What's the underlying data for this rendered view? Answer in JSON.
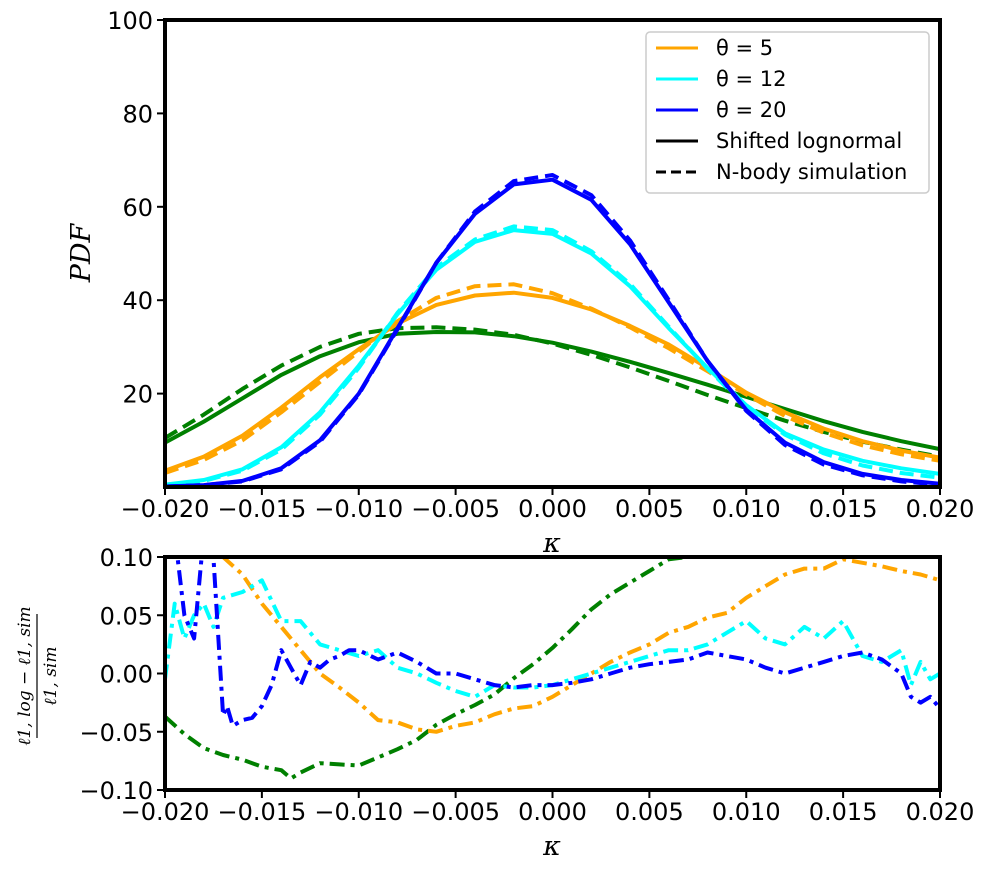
{
  "chart_data": [
    {
      "type": "line",
      "xlabel": "κ",
      "ylabel": "PDF",
      "xlim": [
        -0.02,
        0.02
      ],
      "ylim": [
        0,
        100
      ],
      "xticks": [
        -0.02,
        -0.015,
        -0.01,
        -0.005,
        0.0,
        0.005,
        0.01,
        0.015,
        0.02
      ],
      "xtick_labels": [
        "−0.020",
        "−0.015",
        "−0.010",
        "−0.005",
        "0.000",
        "0.005",
        "0.010",
        "0.015",
        "0.020"
      ],
      "yticks": [
        20,
        40,
        60,
        80,
        100
      ],
      "ytick_labels": [
        "20",
        "40",
        "60",
        "80",
        "100"
      ],
      "grid": false,
      "legend_position": "top-right",
      "legend": [
        {
          "label": "θ = 5",
          "color": "#FFA500",
          "style": "solid"
        },
        {
          "label": "θ = 12",
          "color": "#00FFFF",
          "style": "solid"
        },
        {
          "label": "θ = 20",
          "color": "#0000FF",
          "style": "solid"
        },
        {
          "label": "Shifted lognormal",
          "color": "#000000",
          "style": "solid"
        },
        {
          "label": "N-body simulation",
          "color": "#000000",
          "style": "dashed"
        }
      ],
      "series": [
        {
          "color": "#008000",
          "style": "solid",
          "x": [
            -0.02,
            -0.018,
            -0.016,
            -0.014,
            -0.012,
            -0.01,
            -0.008,
            -0.006,
            -0.004,
            -0.002,
            0.0,
            0.002,
            0.004,
            0.006,
            0.008,
            0.01,
            0.012,
            0.014,
            0.016,
            0.018,
            0.02
          ],
          "y": [
            9.5,
            14,
            19,
            24,
            28,
            31,
            32.8,
            33.2,
            33.1,
            32.3,
            30.9,
            29,
            26.8,
            24.4,
            21.9,
            19.3,
            16.7,
            14.1,
            11.8,
            9.8,
            8.1
          ]
        },
        {
          "color": "#008000",
          "style": "dashed",
          "x": [
            -0.02,
            -0.018,
            -0.016,
            -0.014,
            -0.012,
            -0.01,
            -0.008,
            -0.006,
            -0.004,
            -0.002,
            0.0,
            0.002,
            0.004,
            0.006,
            0.008,
            0.01,
            0.012,
            0.014,
            0.016,
            0.018,
            0.02
          ],
          "y": [
            10.5,
            15.5,
            21,
            26,
            30,
            32.8,
            34,
            34.2,
            33.7,
            32.6,
            30.7,
            28.3,
            25.6,
            22.7,
            19.7,
            16.9,
            14.2,
            11.8,
            9.7,
            8,
            6.5
          ]
        },
        {
          "color": "#FFA500",
          "style": "solid",
          "x": [
            -0.02,
            -0.018,
            -0.016,
            -0.014,
            -0.012,
            -0.01,
            -0.008,
            -0.006,
            -0.004,
            -0.002,
            0.0,
            0.002,
            0.004,
            0.006,
            0.008,
            0.01,
            0.012,
            0.014,
            0.016,
            0.018,
            0.02
          ],
          "y": [
            3.5,
            6.5,
            11,
            17,
            23.5,
            29.5,
            35,
            39,
            41,
            41.6,
            40.5,
            38,
            34.5,
            30.5,
            25.5,
            20.2,
            16,
            12.5,
            9.8,
            7.8,
            6.3
          ]
        },
        {
          "color": "#FFA500",
          "style": "dashed",
          "x": [
            -0.02,
            -0.018,
            -0.016,
            -0.014,
            -0.012,
            -0.01,
            -0.008,
            -0.006,
            -0.004,
            -0.002,
            0.0,
            0.002,
            0.004,
            0.006,
            0.008,
            0.01,
            0.012,
            0.014,
            0.016,
            0.018,
            0.02
          ],
          "y": [
            3,
            5.8,
            10,
            16,
            22.5,
            29,
            35.5,
            40.5,
            43,
            43.4,
            41.5,
            38.2,
            34.2,
            29.7,
            24.8,
            19.8,
            15.2,
            11.6,
            8.9,
            7,
            5.6
          ]
        },
        {
          "color": "#00FFFF",
          "style": "solid",
          "x": [
            -0.02,
            -0.018,
            -0.016,
            -0.014,
            -0.012,
            -0.01,
            -0.008,
            -0.006,
            -0.004,
            -0.002,
            0.0,
            0.002,
            0.004,
            0.006,
            0.008,
            0.01,
            0.012,
            0.014,
            0.016,
            0.018,
            0.02
          ],
          "y": [
            0.5,
            1.5,
            3.8,
            8.5,
            16,
            26,
            37,
            46.5,
            52.5,
            55,
            54.2,
            50,
            43,
            34,
            25.5,
            17.5,
            11.5,
            8,
            5.6,
            4,
            2.8
          ]
        },
        {
          "color": "#00FFFF",
          "style": "dashed",
          "x": [
            -0.02,
            -0.018,
            -0.016,
            -0.014,
            -0.012,
            -0.01,
            -0.008,
            -0.006,
            -0.004,
            -0.002,
            0.0,
            0.002,
            0.004,
            0.006,
            0.008,
            0.01,
            0.012,
            0.014,
            0.016,
            0.018,
            0.02
          ],
          "y": [
            0.4,
            1.3,
            3.5,
            8,
            15.5,
            25.5,
            37.3,
            47,
            53,
            55.8,
            55,
            50.5,
            43.5,
            34.3,
            25.3,
            17.2,
            11.2,
            7.2,
            4.6,
            3,
            2
          ]
        },
        {
          "color": "#0000FF",
          "style": "solid",
          "x": [
            -0.02,
            -0.018,
            -0.016,
            -0.014,
            -0.012,
            -0.01,
            -0.008,
            -0.006,
            -0.004,
            -0.002,
            0.0,
            0.002,
            0.004,
            0.006,
            0.008,
            0.01,
            0.012,
            0.014,
            0.016,
            0.018,
            0.02
          ],
          "y": [
            0.1,
            0.4,
            1.3,
            4,
            10,
            20,
            34,
            48,
            58.5,
            64.8,
            65.8,
            61.5,
            52,
            39.5,
            27,
            16.5,
            9.5,
            5.3,
            2.8,
            1.5,
            0.7
          ]
        },
        {
          "color": "#0000FF",
          "style": "dashed",
          "x": [
            -0.02,
            -0.018,
            -0.016,
            -0.014,
            -0.012,
            -0.01,
            -0.008,
            -0.006,
            -0.004,
            -0.002,
            0.0,
            0.002,
            0.004,
            0.006,
            0.008,
            0.01,
            0.012,
            0.014,
            0.016,
            0.018,
            0.02
          ],
          "y": [
            0.1,
            0.4,
            1.2,
            3.8,
            9.7,
            19.8,
            33.8,
            48,
            59,
            65.5,
            66.8,
            62.5,
            52.8,
            40,
            27,
            16.3,
            9,
            4.8,
            2.5,
            1.2,
            0.5
          ]
        }
      ]
    },
    {
      "type": "line",
      "xlabel": "κ",
      "ylabel": "ℓ1,log − ℓ1,sim / ℓ1,sim",
      "ylabel_numerator": "ℓ1, log − ℓ1, sim",
      "ylabel_denominator": "ℓ1, sim",
      "xlim": [
        -0.02,
        0.02
      ],
      "ylim": [
        -0.1,
        0.1
      ],
      "xticks": [
        -0.02,
        -0.015,
        -0.01,
        -0.005,
        0.0,
        0.005,
        0.01,
        0.015,
        0.02
      ],
      "xtick_labels": [
        "−0.020",
        "−0.015",
        "−0.010",
        "−0.005",
        "0.000",
        "0.005",
        "0.010",
        "0.015",
        "0.020"
      ],
      "yticks": [
        -0.1,
        -0.05,
        0.0,
        0.05,
        0.1
      ],
      "ytick_labels": [
        "−0.10",
        "−0.05",
        "0.00",
        "0.05",
        "0.10"
      ],
      "grid": false,
      "series": [
        {
          "color": "#008000",
          "style": "dashdot",
          "x": [
            -0.02,
            -0.019,
            -0.018,
            -0.017,
            -0.016,
            -0.015,
            -0.014,
            -0.0135,
            -0.013,
            -0.012,
            -0.011,
            -0.01,
            -0.009,
            -0.008,
            -0.007,
            -0.006,
            -0.005,
            -0.004,
            -0.003,
            -0.002,
            -0.001,
            0.0,
            0.001,
            0.002,
            0.003,
            0.004,
            0.005,
            0.006,
            0.007
          ],
          "y": [
            -0.037,
            -0.052,
            -0.064,
            -0.07,
            -0.074,
            -0.08,
            -0.083,
            -0.09,
            -0.085,
            -0.077,
            -0.078,
            -0.079,
            -0.072,
            -0.065,
            -0.057,
            -0.044,
            -0.035,
            -0.027,
            -0.018,
            -0.004,
            0.008,
            0.022,
            0.038,
            0.055,
            0.068,
            0.078,
            0.088,
            0.098,
            0.1
          ]
        },
        {
          "color": "#FFA500",
          "style": "dashdot",
          "x": [
            -0.02,
            -0.019,
            -0.018,
            -0.017,
            -0.016,
            -0.015,
            -0.014,
            -0.013,
            -0.012,
            -0.011,
            -0.01,
            -0.009,
            -0.008,
            -0.007,
            -0.006,
            -0.005,
            -0.004,
            -0.003,
            -0.002,
            -0.001,
            0.0,
            0.001,
            0.002,
            0.003,
            0.004,
            0.005,
            0.006,
            0.007,
            0.008,
            0.009,
            0.01,
            0.011,
            0.012,
            0.013,
            0.014,
            0.015,
            0.016,
            0.017,
            0.018,
            0.019,
            0.02
          ],
          "y": [
            0.12,
            0.11,
            0.105,
            0.1,
            0.085,
            0.06,
            0.04,
            0.02,
            0.0,
            -0.012,
            -0.025,
            -0.04,
            -0.042,
            -0.048,
            -0.05,
            -0.045,
            -0.042,
            -0.035,
            -0.03,
            -0.028,
            -0.02,
            -0.01,
            0.0,
            0.01,
            0.018,
            0.025,
            0.035,
            0.04,
            0.048,
            0.052,
            0.065,
            0.075,
            0.085,
            0.09,
            0.09,
            0.098,
            0.095,
            0.092,
            0.088,
            0.085,
            0.08
          ]
        },
        {
          "color": "#00FFFF",
          "style": "dashdot",
          "x": [
            -0.02,
            -0.0195,
            -0.019,
            -0.0185,
            -0.018,
            -0.0175,
            -0.017,
            -0.016,
            -0.015,
            -0.014,
            -0.013,
            -0.012,
            -0.011,
            -0.01,
            -0.009,
            -0.008,
            -0.007,
            -0.006,
            -0.005,
            -0.004,
            -0.003,
            -0.002,
            -0.001,
            0.0,
            0.001,
            0.002,
            0.003,
            0.004,
            0.005,
            0.006,
            0.007,
            0.008,
            0.009,
            0.01,
            0.011,
            0.012,
            0.013,
            0.014,
            0.015,
            0.016,
            0.017,
            0.018,
            0.0185,
            0.019,
            0.0195,
            0.02
          ],
          "y": [
            -0.005,
            0.06,
            0.03,
            0.05,
            0.06,
            0.04,
            0.065,
            0.07,
            0.08,
            0.045,
            0.045,
            0.025,
            0.02,
            0.015,
            0.02,
            0.005,
            0.0,
            -0.008,
            -0.015,
            -0.02,
            -0.01,
            -0.012,
            -0.012,
            -0.01,
            -0.005,
            0.0,
            0.005,
            0.01,
            0.015,
            0.02,
            0.02,
            0.025,
            0.035,
            0.045,
            0.03,
            0.025,
            0.04,
            0.03,
            0.045,
            0.015,
            0.01,
            0.02,
            -0.01,
            0.01,
            -0.005,
            0.0
          ]
        },
        {
          "color": "#0000FF",
          "style": "dashdot",
          "x": [
            -0.02,
            -0.0195,
            -0.019,
            -0.0185,
            -0.018,
            -0.0175,
            -0.017,
            -0.0168,
            -0.0165,
            -0.016,
            -0.0155,
            -0.015,
            -0.0145,
            -0.014,
            -0.0135,
            -0.013,
            -0.0125,
            -0.012,
            -0.0115,
            -0.011,
            -0.0105,
            -0.01,
            -0.009,
            -0.008,
            -0.007,
            -0.006,
            -0.005,
            -0.004,
            -0.003,
            -0.002,
            -0.001,
            0.0,
            0.001,
            0.002,
            0.003,
            0.004,
            0.005,
            0.006,
            0.007,
            0.008,
            0.009,
            0.01,
            0.011,
            0.012,
            0.013,
            0.014,
            0.015,
            0.016,
            0.017,
            0.018,
            0.0185,
            0.019,
            0.0195,
            0.02
          ],
          "y": [
            0.1,
            0.12,
            0.05,
            0.03,
            0.12,
            0.1,
            -0.036,
            -0.028,
            -0.045,
            -0.04,
            -0.038,
            -0.028,
            -0.01,
            0.02,
            0.005,
            -0.01,
            0.01,
            0.005,
            0.012,
            0.015,
            0.02,
            0.02,
            0.012,
            0.018,
            0.01,
            0.0,
            0.0,
            -0.005,
            -0.01,
            -0.012,
            -0.01,
            -0.01,
            -0.008,
            -0.005,
            0.0,
            0.005,
            0.008,
            0.01,
            0.012,
            0.018,
            0.015,
            0.012,
            0.005,
            0.0,
            0.005,
            0.01,
            0.015,
            0.018,
            0.012,
            0.0,
            -0.02,
            -0.025,
            -0.02,
            -0.03
          ]
        }
      ]
    }
  ]
}
